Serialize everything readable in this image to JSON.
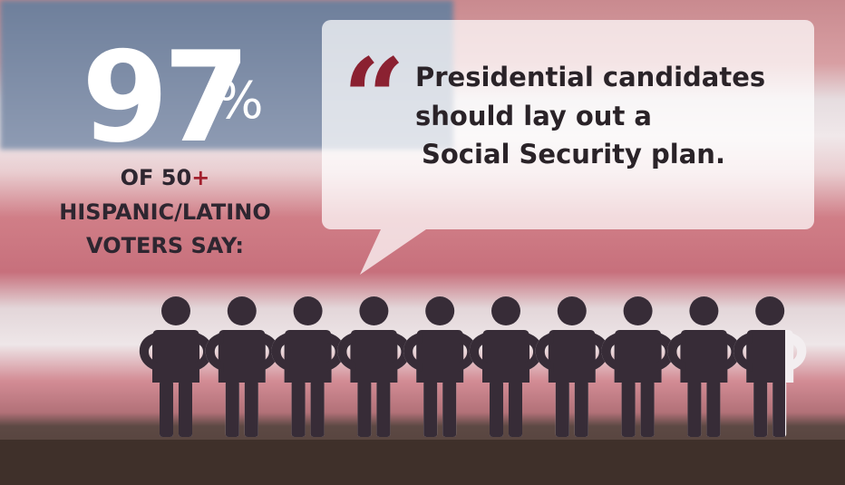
{
  "stat": {
    "value": 97,
    "unit": "%",
    "group_line": "OF 50",
    "group_suffix": "+",
    "lines": [
      "HISPANIC/LATINO",
      "VOTERS SAY:"
    ]
  },
  "quote": {
    "mark": "“",
    "lines": [
      "Presidential candidates",
      "should lay out a",
      "Social Security plan."
    ]
  }
}
